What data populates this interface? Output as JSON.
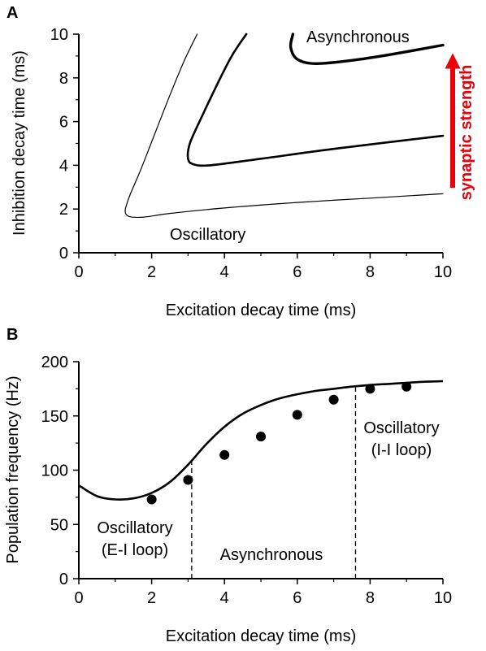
{
  "colors": {
    "ink": "#000000",
    "accent": "#e8000b",
    "background": "#ffffff"
  },
  "chart_data": [
    {
      "panel": "A",
      "type": "line",
      "xlabel": "Excitation decay time (ms)",
      "ylabel": "Inhibition decay time (ms)",
      "xlim": [
        0,
        10
      ],
      "ylim": [
        0,
        10
      ],
      "xticks": [
        "0",
        "2",
        "4",
        "6",
        "8",
        "10"
      ],
      "yticks": [
        "0",
        "2",
        "4",
        "6",
        "8",
        "10"
      ],
      "grid": false,
      "annotations": {
        "oscillatory": "Oscillatory",
        "asynchronous": "Asynchronous",
        "arrow": "synaptic strength"
      },
      "series": [
        {
          "weight": "thin",
          "points": [
            [
              3.25,
              10.0
            ],
            [
              2.9,
              8.8
            ],
            [
              2.5,
              7.2
            ],
            [
              2.1,
              5.5
            ],
            [
              1.7,
              3.8
            ],
            [
              1.35,
              2.4
            ],
            [
              1.3,
              1.75
            ],
            [
              1.7,
              1.62
            ],
            [
              2.5,
              1.8
            ],
            [
              4.0,
              2.05
            ],
            [
              6.0,
              2.3
            ],
            [
              8.0,
              2.5
            ],
            [
              10.0,
              2.7
            ]
          ]
        },
        {
          "weight": "medium",
          "points": [
            [
              4.6,
              10.0
            ],
            [
              4.2,
              9.0
            ],
            [
              3.8,
              7.7
            ],
            [
              3.4,
              6.3
            ],
            [
              3.05,
              5.0
            ],
            [
              3.0,
              4.3
            ],
            [
              3.15,
              4.05
            ],
            [
              3.6,
              4.0
            ],
            [
              5.0,
              4.3
            ],
            [
              7.0,
              4.75
            ],
            [
              10.0,
              5.35
            ]
          ]
        },
        {
          "weight": "thick",
          "points": [
            [
              5.88,
              10.0
            ],
            [
              5.82,
              9.4
            ],
            [
              6.0,
              8.85
            ],
            [
              6.5,
              8.65
            ],
            [
              7.5,
              8.8
            ],
            [
              8.5,
              9.05
            ],
            [
              10.0,
              9.5
            ]
          ]
        }
      ]
    },
    {
      "panel": "B",
      "type": "line",
      "xlabel": "Excitation decay time (ms)",
      "ylabel": "Population frequency (Hz)",
      "xlim": [
        0,
        10
      ],
      "ylim": [
        0,
        200
      ],
      "xticks": [
        "0",
        "2",
        "4",
        "6",
        "8",
        "10"
      ],
      "yticks": [
        "0",
        "50",
        "100",
        "150",
        "200"
      ],
      "grid": false,
      "annotations": {
        "left_region": [
          "Oscillatory",
          "(E-I loop)"
        ],
        "middle_region": "Asynchronous",
        "right_region": [
          "Oscillatory",
          "(I-I loop)"
        ]
      },
      "boundaries": [
        3.1,
        7.6
      ],
      "series": [
        {
          "kind": "theory-curve",
          "x": [
            0.0,
            0.5,
            1.0,
            1.5,
            2.0,
            2.5,
            3.0,
            3.5,
            4.0,
            4.5,
            5.0,
            5.5,
            6.0,
            6.5,
            7.0,
            7.5,
            8.0,
            8.5,
            9.0,
            9.5,
            10.0
          ],
          "y": [
            86,
            76,
            73,
            74,
            79,
            89,
            105,
            124,
            140,
            152,
            160,
            166,
            170,
            173,
            175,
            177,
            178.5,
            179.5,
            180.5,
            181.5,
            182
          ]
        },
        {
          "kind": "simulation-points",
          "x": [
            2,
            3,
            4,
            5,
            6,
            7,
            8,
            9
          ],
          "y": [
            73,
            91,
            114,
            131,
            151,
            165,
            175,
            177
          ]
        }
      ]
    }
  ]
}
